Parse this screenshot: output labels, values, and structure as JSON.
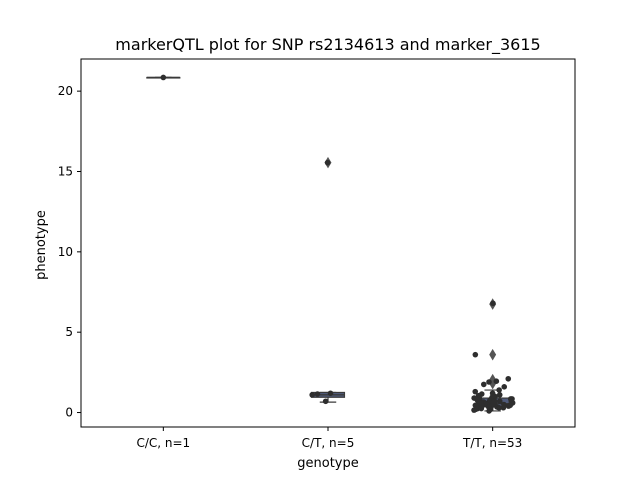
{
  "chart_data": {
    "type": "box+strip",
    "title": "markerQTL plot for SNP rs2134613 and marker_3615",
    "xlabel": "genotype",
    "ylabel": "phenotype",
    "categories": [
      "C/C, n=1",
      "C/T, n=5",
      "T/T, n=53"
    ],
    "ylim": [
      -0.9,
      22.0
    ],
    "yticks": [
      0,
      5,
      10,
      15,
      20
    ],
    "grid": false,
    "legend": "none",
    "colors": {
      "box": "#4f5a7a",
      "line": "#3a3a3a",
      "point": "#2e2e2e"
    },
    "boxes": [
      {
        "category": "C/C, n=1",
        "q1": 20.85,
        "median": 20.85,
        "q3": 20.85,
        "whisker_low": 20.85,
        "whisker_high": 20.85,
        "outliers": []
      },
      {
        "category": "C/T, n=5",
        "q1": 0.95,
        "median": 1.1,
        "q3": 1.25,
        "whisker_low": 0.65,
        "whisker_high": 1.25,
        "outliers": [
          15.55
        ]
      },
      {
        "category": "T/T, n=53",
        "q1": 0.35,
        "median": 0.55,
        "q3": 0.9,
        "whisker_low": 0.1,
        "whisker_high": 1.4,
        "outliers": [
          1.8,
          2.05,
          3.6,
          6.75
        ]
      }
    ],
    "points": [
      {
        "category": "C/C, n=1",
        "values": [
          20.85
        ]
      },
      {
        "category": "C/T, n=5",
        "values": [
          15.55,
          1.2,
          1.1,
          1.15,
          0.7
        ]
      },
      {
        "category": "T/T, n=53",
        "values": [
          6.8,
          3.6,
          2.1,
          1.95,
          1.9,
          1.75,
          1.6,
          1.4,
          1.3,
          1.2,
          1.15,
          1.1,
          1.05,
          1.0,
          0.95,
          0.9,
          0.9,
          0.85,
          0.85,
          0.8,
          0.8,
          0.75,
          0.75,
          0.7,
          0.7,
          0.7,
          0.65,
          0.65,
          0.6,
          0.6,
          0.6,
          0.55,
          0.55,
          0.55,
          0.5,
          0.5,
          0.5,
          0.45,
          0.45,
          0.45,
          0.4,
          0.4,
          0.4,
          0.35,
          0.35,
          0.3,
          0.3,
          0.25,
          0.25,
          0.2,
          0.2,
          0.15,
          0.1
        ]
      }
    ]
  }
}
